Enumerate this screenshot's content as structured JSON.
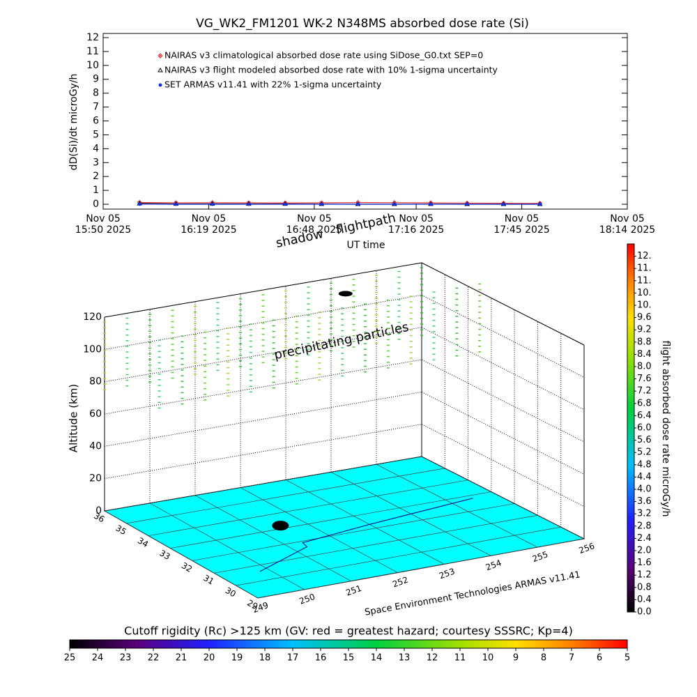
{
  "chart_data": [
    {
      "type": "line",
      "title": "VG_WK2_FM1201   WK-2 N348MS absorbed dose rate (Si)",
      "ylabel": "dD(Si)/dt microGy/h",
      "xlabel": "UT time",
      "xlim": [
        "2025-11-05T15:50",
        "2025-11-05T18:14"
      ],
      "xticks": [
        {
          "value": "2025-11-05T15:50",
          "label": "Nov 05\n15:50 2025"
        },
        {
          "value": "2025-11-05T16:19",
          "label": "Nov 05\n16:19 2025"
        },
        {
          "value": "2025-11-05T16:48",
          "label": "Nov 05\n16:48 2025"
        },
        {
          "value": "2025-11-05T17:16",
          "label": "Nov 05\n17:16 2025"
        },
        {
          "value": "2025-11-05T17:45",
          "label": "Nov 05\n17:45 2025"
        },
        {
          "value": "2025-11-05T18:14",
          "label": "Nov 05\n18:14 2025"
        }
      ],
      "ylim": [
        -0.35,
        12.3
      ],
      "yticks": [
        0,
        1,
        2,
        3,
        4,
        5,
        6,
        7,
        8,
        9,
        10,
        11,
        12
      ],
      "series": [
        {
          "name": "NAIRAS v3 climatological absorbed dose rate using SiDose_G0.txt SEP=0",
          "color": "#e03030",
          "marker": "diamond",
          "x": [
            "2025-11-05T16:00",
            "2025-11-05T16:10",
            "2025-11-05T16:20",
            "2025-11-05T16:30",
            "2025-11-05T16:40",
            "2025-11-05T16:50",
            "2025-11-05T17:00",
            "2025-11-05T17:10",
            "2025-11-05T17:20",
            "2025-11-05T17:30",
            "2025-11-05T17:40",
            "2025-11-05T17:50"
          ],
          "values": [
            0.12,
            0.1,
            0.11,
            0.1,
            0.09,
            0.1,
            0.12,
            0.11,
            0.1,
            0.08,
            0.07,
            0.06
          ]
        },
        {
          "name": "NAIRAS v3 flight modeled absorbed dose rate with 10% 1-sigma uncertainty",
          "color": "#000000",
          "marker": "triangle",
          "x": [
            "2025-11-05T16:00",
            "2025-11-05T16:10",
            "2025-11-05T16:20",
            "2025-11-05T16:30",
            "2025-11-05T16:40",
            "2025-11-05T16:50",
            "2025-11-05T17:00",
            "2025-11-05T17:10",
            "2025-11-05T17:20",
            "2025-11-05T17:30",
            "2025-11-05T17:40",
            "2025-11-05T17:50"
          ],
          "values": [
            0.05,
            0.02,
            0.03,
            0.02,
            0.02,
            0.01,
            0.0,
            0.0,
            0.01,
            0.0,
            0.0,
            0.0
          ]
        },
        {
          "name": "SET ARMAS v11.41 with 22% 1-sigma uncertainty",
          "color": "#1030e0",
          "marker": "circle",
          "x": [
            "2025-11-05T16:00",
            "2025-11-05T16:10",
            "2025-11-05T16:20",
            "2025-11-05T16:30",
            "2025-11-05T16:40",
            "2025-11-05T16:50",
            "2025-11-05T17:00",
            "2025-11-05T17:10",
            "2025-11-05T17:20",
            "2025-11-05T17:30",
            "2025-11-05T17:40",
            "2025-11-05T17:50"
          ],
          "values": [
            0.01,
            0.0,
            0.0,
            0.0,
            0.0,
            0.0,
            0.0,
            0.0,
            0.0,
            0.0,
            0.0,
            0.0
          ]
        }
      ]
    },
    {
      "type": "3d",
      "zlabel": "Altitude (km)",
      "zlim": [
        0,
        120
      ],
      "zticks": [
        0,
        20,
        40,
        60,
        80,
        100,
        120
      ],
      "latlim": [
        29,
        36
      ],
      "latticks": [
        29,
        30,
        31,
        32,
        33,
        34,
        35,
        36
      ],
      "lonlim": [
        249,
        256
      ],
      "lonticks": [
        249,
        250,
        251,
        252,
        253,
        254,
        255,
        256
      ],
      "xlabel": "Space Environment Technologies ARMAS v11.41",
      "annotations": [
        "shadow",
        "flightpath",
        "precipitating particles"
      ],
      "colorbar": {
        "label": "flight absorbed dose rate microGy/h",
        "lim": [
          0,
          12
        ],
        "ticks": [
          {
            "value": 0,
            "label": "0.0"
          },
          0.4,
          0.8,
          1.2,
          1.6,
          {
            "value": 2,
            "label": "2.0"
          },
          2.4,
          2.8,
          3.2,
          3.6,
          {
            "value": 4,
            "label": "4.0"
          },
          4.4,
          4.8,
          5.2,
          5.6,
          {
            "value": 6,
            "label": "6.0"
          },
          6.4,
          6.8,
          7.2,
          7.6,
          {
            "value": 8,
            "label": "8.0"
          },
          8.4,
          8.8,
          9.2,
          9.6,
          {
            "value": 10,
            "label": "10."
          },
          {
            "value": 10.4,
            "label": "10."
          },
          {
            "value": 10.8,
            "label": "11."
          },
          {
            "value": 11.2,
            "label": "11."
          },
          {
            "value": 11.6,
            "label": "12."
          }
        ]
      },
      "rigidity_colorbar": {
        "title": "Cutoff rigidity (Rc) >125 km (GV: red = greatest hazard; courtesy SSSRC; Kp=4)",
        "lim": [
          25,
          5
        ],
        "ticks": [
          25,
          24,
          23,
          22,
          21,
          20,
          19,
          18,
          17,
          16,
          15,
          14,
          13,
          12,
          11,
          10,
          9,
          8,
          7,
          6,
          5
        ]
      }
    }
  ]
}
